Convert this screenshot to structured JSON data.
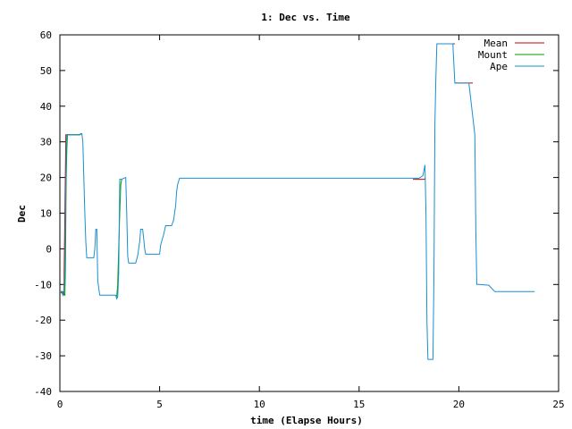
{
  "chart_data": {
    "type": "line",
    "title": "1: Dec vs. Time",
    "xlabel": "time (Elapse Hours)",
    "ylabel": "Dec",
    "xlim": [
      0,
      25
    ],
    "ylim": [
      -40,
      60
    ],
    "xticks": [
      0,
      5,
      10,
      15,
      20,
      25
    ],
    "yticks": [
      -40,
      -30,
      -20,
      -10,
      0,
      10,
      20,
      30,
      40,
      50,
      60
    ],
    "grid": false,
    "legend_position": "top-right",
    "series": [
      {
        "name": "Mean",
        "color": "#cc0000",
        "x": [
          0.0,
          0.1,
          0.15,
          0.2,
          0.3,
          0.4,
          0.5,
          0.8,
          1.0,
          1.1,
          1.1
        ],
        "y": [
          -12,
          -12,
          -12,
          -13,
          32,
          32,
          32,
          32,
          32,
          32.3,
          32.3
        ],
        "segments_note": "",
        "extra": [
          {
            "x": [
              17.7,
              18.0,
              18.3,
              18.3
            ],
            "y": [
              19.5,
              19.5,
              19.5,
              19.8
            ]
          },
          {
            "x": [
              18.9,
              19.1,
              19.4,
              19.7,
              19.8
            ],
            "y": [
              57.5,
              57.5,
              57.5,
              57.5,
              57.5
            ]
          },
          {
            "x": [
              19.8,
              20.0,
              20.5,
              20.7
            ],
            "y": [
              46.5,
              46.5,
              46.5,
              46.5
            ]
          }
        ]
      },
      {
        "name": "Mount",
        "color": "#00a000",
        "x": [
          0.0,
          0.25,
          0.28,
          0.3,
          0.32,
          0.35,
          0.38,
          0.4,
          1.0,
          1.1,
          1.1
        ],
        "y": [
          -12,
          -13,
          -6,
          10,
          20,
          28,
          32,
          32,
          32,
          32.3,
          32.3
        ],
        "extra": [
          {
            "x": [
              2.85,
              2.9,
              2.95,
              3.0,
              3.05,
              3.1
            ],
            "y": [
              -13.5,
              -10,
              0,
              10,
              18,
              19.5
            ]
          }
        ]
      },
      {
        "name": "Ape",
        "color": "#1a8fd0",
        "x": [
          0.0,
          0.05,
          0.1,
          0.15,
          0.2,
          0.25,
          0.28,
          0.3,
          0.32,
          0.35,
          0.4,
          0.5,
          0.6,
          0.7,
          0.8,
          0.9,
          1.0,
          1.05,
          1.1,
          1.15,
          1.2,
          1.25,
          1.3,
          1.35,
          1.4,
          1.5,
          1.7,
          1.75,
          1.8,
          1.85,
          1.9,
          2.0,
          2.2,
          2.5,
          2.8,
          2.85,
          2.9,
          2.95,
          3.0,
          3.05,
          3.1,
          3.2,
          3.3,
          3.35,
          3.4,
          3.45,
          3.5,
          3.8,
          3.9,
          4.0,
          4.05,
          4.1,
          4.15,
          4.2,
          4.25,
          4.3,
          4.4,
          4.6,
          4.8,
          5.0,
          5.05,
          5.1,
          5.2,
          5.3,
          5.5,
          5.6,
          5.7,
          5.8,
          5.85,
          5.9,
          6.0,
          8.0,
          10.0,
          12.0,
          14.0,
          16.0,
          17.0,
          17.5,
          18.0,
          18.2,
          18.3,
          18.35,
          18.4,
          18.45,
          18.5,
          18.55,
          18.6,
          18.7,
          18.75,
          18.8,
          18.85,
          18.9,
          19.0,
          19.3,
          19.6,
          19.7,
          19.8,
          19.85,
          19.9,
          20.2,
          20.5,
          20.8,
          20.85,
          20.9,
          20.95,
          21.0,
          21.5,
          21.8,
          22.0,
          22.5,
          23.0,
          23.5,
          23.8
        ],
        "y": [
          -12,
          -12,
          -12,
          -13,
          -12,
          -6,
          6,
          20,
          29,
          32,
          32,
          32,
          32,
          32,
          32,
          32,
          32,
          32.3,
          32.3,
          30,
          20,
          10,
          2,
          -2.5,
          -2.5,
          -2.5,
          -2.5,
          0,
          5.5,
          5.5,
          -9,
          -13,
          -13,
          -13,
          -13,
          -14,
          -13.5,
          -7,
          19.5,
          19.5,
          19.5,
          19.8,
          20,
          10,
          -2,
          -4,
          -4,
          -4,
          -2,
          2,
          5.5,
          5.5,
          5.5,
          3,
          0,
          -1.5,
          -1.5,
          -1.5,
          -1.5,
          -1.5,
          1,
          2,
          4,
          6.5,
          6.5,
          6.5,
          8,
          12,
          16,
          18,
          19.8,
          19.8,
          19.8,
          19.8,
          19.8,
          19.8,
          19.8,
          19.8,
          19.8,
          20.5,
          23.5,
          10,
          -20,
          -31,
          -31,
          -31,
          -31,
          -31,
          -9,
          35,
          48,
          57.5,
          57.5,
          57.5,
          57.5,
          57.5,
          46.5,
          46.5,
          46.5,
          46.5,
          46.5,
          32,
          5,
          -10,
          -10,
          -10,
          -10.2,
          -12,
          -12,
          -12,
          -12,
          -12,
          -12
        ]
      }
    ]
  }
}
